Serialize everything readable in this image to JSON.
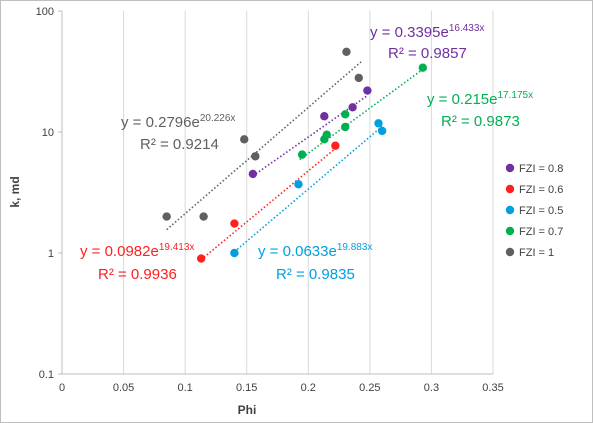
{
  "chart_data": {
    "type": "scatter",
    "xlabel": "Phi",
    "ylabel": "k, md",
    "xlim": [
      0,
      0.35
    ],
    "ylim": [
      0.1,
      100
    ],
    "yscale": "log",
    "grid": "vertical",
    "legend_position": "right",
    "x_ticks": [
      "0",
      "0.05",
      "0.1",
      "0.15",
      "0.2",
      "0.25",
      "0.3",
      "0.35"
    ],
    "y_ticks": [
      "0.1",
      "1",
      "10",
      "100"
    ],
    "series": [
      {
        "name": "FZI = 0.8",
        "color": "#7030a0",
        "points": [
          [
            0.155,
            4.5
          ],
          [
            0.213,
            13.5
          ],
          [
            0.236,
            16.0
          ],
          [
            0.248,
            22.0
          ]
        ],
        "trend": {
          "a": 0.3395,
          "b": 16.433,
          "x_range": [
            0.155,
            0.248
          ],
          "equation_base": "y = 0.3395e",
          "equation_exp": "16.433x",
          "r2": "R² = 0.9857"
        }
      },
      {
        "name": "FZI = 0.6",
        "color": "#ff2020",
        "points": [
          [
            0.113,
            0.9
          ],
          [
            0.14,
            1.75
          ],
          [
            0.222,
            7.7
          ]
        ],
        "trend": {
          "a": 0.0982,
          "b": 19.413,
          "x_range": [
            0.113,
            0.222
          ],
          "equation_base": "y = 0.0982e",
          "equation_exp": "19.413x",
          "r2": "R² = 0.9936"
        }
      },
      {
        "name": "FZI = 0.5",
        "color": "#00a0e0",
        "points": [
          [
            0.14,
            1.0
          ],
          [
            0.192,
            3.7
          ],
          [
            0.257,
            11.8
          ],
          [
            0.26,
            10.2
          ]
        ],
        "trend": {
          "a": 0.0633,
          "b": 19.883,
          "x_range": [
            0.14,
            0.26
          ],
          "equation_base": "y = 0.0633e",
          "equation_exp": "19.883x",
          "r2": "R² = 0.9835"
        }
      },
      {
        "name": "FZI = 0.7",
        "color": "#00b050",
        "points": [
          [
            0.195,
            6.5
          ],
          [
            0.213,
            8.7
          ],
          [
            0.215,
            9.5
          ],
          [
            0.23,
            11.0
          ],
          [
            0.23,
            14.0
          ],
          [
            0.293,
            34.0
          ]
        ],
        "trend": {
          "a": 0.215,
          "b": 17.175,
          "x_range": [
            0.193,
            0.295
          ],
          "equation_base": "y = 0.215e",
          "equation_exp": "17.175x",
          "r2": "R² = 0.9873"
        }
      },
      {
        "name": "FZI = 1",
        "color": "#606060",
        "points": [
          [
            0.085,
            2.0
          ],
          [
            0.115,
            2.0
          ],
          [
            0.148,
            8.7
          ],
          [
            0.157,
            6.3
          ],
          [
            0.231,
            46.0
          ],
          [
            0.241,
            28.0
          ]
        ],
        "trend": {
          "a": 0.2796,
          "b": 20.226,
          "x_range": [
            0.085,
            0.243
          ],
          "equation_base": "y = 0.2796e",
          "equation_exp": "20.226x",
          "r2": "R² = 0.9214"
        }
      }
    ]
  }
}
